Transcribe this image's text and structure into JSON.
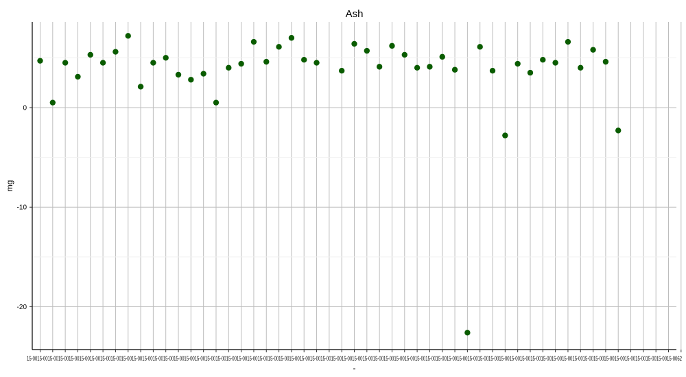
{
  "chart_data": {
    "type": "scatter",
    "title": "Ash",
    "xlabel": "-",
    "ylabel": "mg",
    "ylim": [
      -24.3,
      8.6
    ],
    "yticks": [
      0,
      -10,
      -20
    ],
    "grid": true,
    "point_color": "#0a5c00",
    "categories": [
      "15-0001",
      "15-0002",
      "15-0003",
      "15-0004",
      "15-0005",
      "15-0006",
      "15-0007",
      "15-0008",
      "15-0009",
      "15-0010",
      "15-0011",
      "15-0012",
      "15-0013",
      "15-0014",
      "15-0015",
      "15-0016",
      "15-0017",
      "15-0018",
      "15-0019",
      "15-0020",
      "15-0021",
      "15-0022",
      "15-0023",
      "15-0024",
      "15-0025",
      "15-0026",
      "15-0027",
      "15-0028",
      "15-0029",
      "15-0030",
      "15-0031",
      "15-0032",
      "15-0033",
      "15-0034",
      "15-0035",
      "15-0036",
      "15-0037",
      "15-0038",
      "15-0039",
      "15-0040",
      "15-0041",
      "15-0042",
      "15-0043",
      "15-0044",
      "15-0045",
      "15-0046",
      "15-0047",
      "15-0048",
      "15-0049",
      "15-0050",
      "15-0051",
      "15-0052",
      "15-0053",
      "15-0054",
      "15-0055",
      "15-0056",
      "15-0057",
      "15-0058",
      "15-0059",
      "15-0060",
      "15-0061",
      "15-0062"
    ],
    "xtick_text": "15-0015-0015-0015-0015-0015-0015-0015-0015-0015-0015-0015-0015-0015-0015-0015-0015-0015-0015-0015-0015-0015-0015-0015-0015-0015-0015-0015-0015-0015-0015-0015-0015-0015-0015-0015-0015-0015-0015-0015-0015-0015-0015-0015-0015-0015-0015-0015-0015-0015-0015-0015-0015-0015-0015-0015-0015-0015-0015-0015-0015-0015-0062",
    "points": [
      {
        "x": "15-0001",
        "y": 4.7
      },
      {
        "x": "15-0002",
        "y": 0.5
      },
      {
        "x": "15-0003",
        "y": 4.5
      },
      {
        "x": "15-0004",
        "y": 3.1
      },
      {
        "x": "15-0005",
        "y": 5.3
      },
      {
        "x": "15-0006",
        "y": 4.5
      },
      {
        "x": "15-0007",
        "y": 5.6
      },
      {
        "x": "15-0008",
        "y": 7.2
      },
      {
        "x": "15-0009",
        "y": 2.1
      },
      {
        "x": "15-0010",
        "y": 4.5
      },
      {
        "x": "15-0011",
        "y": 5.0
      },
      {
        "x": "15-0012",
        "y": 3.3
      },
      {
        "x": "15-0013",
        "y": 2.8
      },
      {
        "x": "15-0014",
        "y": 3.4
      },
      {
        "x": "15-0015",
        "y": 0.5
      },
      {
        "x": "15-0016",
        "y": 4.0
      },
      {
        "x": "15-0017",
        "y": 4.4
      },
      {
        "x": "15-0018",
        "y": 6.6
      },
      {
        "x": "15-0019",
        "y": 4.6
      },
      {
        "x": "15-0020",
        "y": 6.1
      },
      {
        "x": "15-0021",
        "y": 7.0
      },
      {
        "x": "15-0022",
        "y": 4.8
      },
      {
        "x": "15-0023",
        "y": 4.5
      },
      {
        "x": "15-0025",
        "y": 3.7
      },
      {
        "x": "15-0026",
        "y": 6.4
      },
      {
        "x": "15-0027",
        "y": 5.7
      },
      {
        "x": "15-0028",
        "y": 4.1
      },
      {
        "x": "15-0029",
        "y": 6.2
      },
      {
        "x": "15-0030",
        "y": 5.3
      },
      {
        "x": "15-0031",
        "y": 4.0
      },
      {
        "x": "15-0032",
        "y": 4.1
      },
      {
        "x": "15-0033",
        "y": 5.1
      },
      {
        "x": "15-0034",
        "y": 3.8
      },
      {
        "x": "15-0035",
        "y": -22.6
      },
      {
        "x": "15-0036",
        "y": 6.1
      },
      {
        "x": "15-0037",
        "y": 3.7
      },
      {
        "x": "15-0038",
        "y": -2.8
      },
      {
        "x": "15-0039",
        "y": 4.4
      },
      {
        "x": "15-0040",
        "y": 3.5
      },
      {
        "x": "15-0041",
        "y": 4.8
      },
      {
        "x": "15-0042",
        "y": 4.5
      },
      {
        "x": "15-0043",
        "y": 6.6
      },
      {
        "x": "15-0044",
        "y": 4.0
      },
      {
        "x": "15-0045",
        "y": 5.8
      },
      {
        "x": "15-0046",
        "y": 4.6
      },
      {
        "x": "15-0047",
        "y": -2.3
      }
    ]
  }
}
